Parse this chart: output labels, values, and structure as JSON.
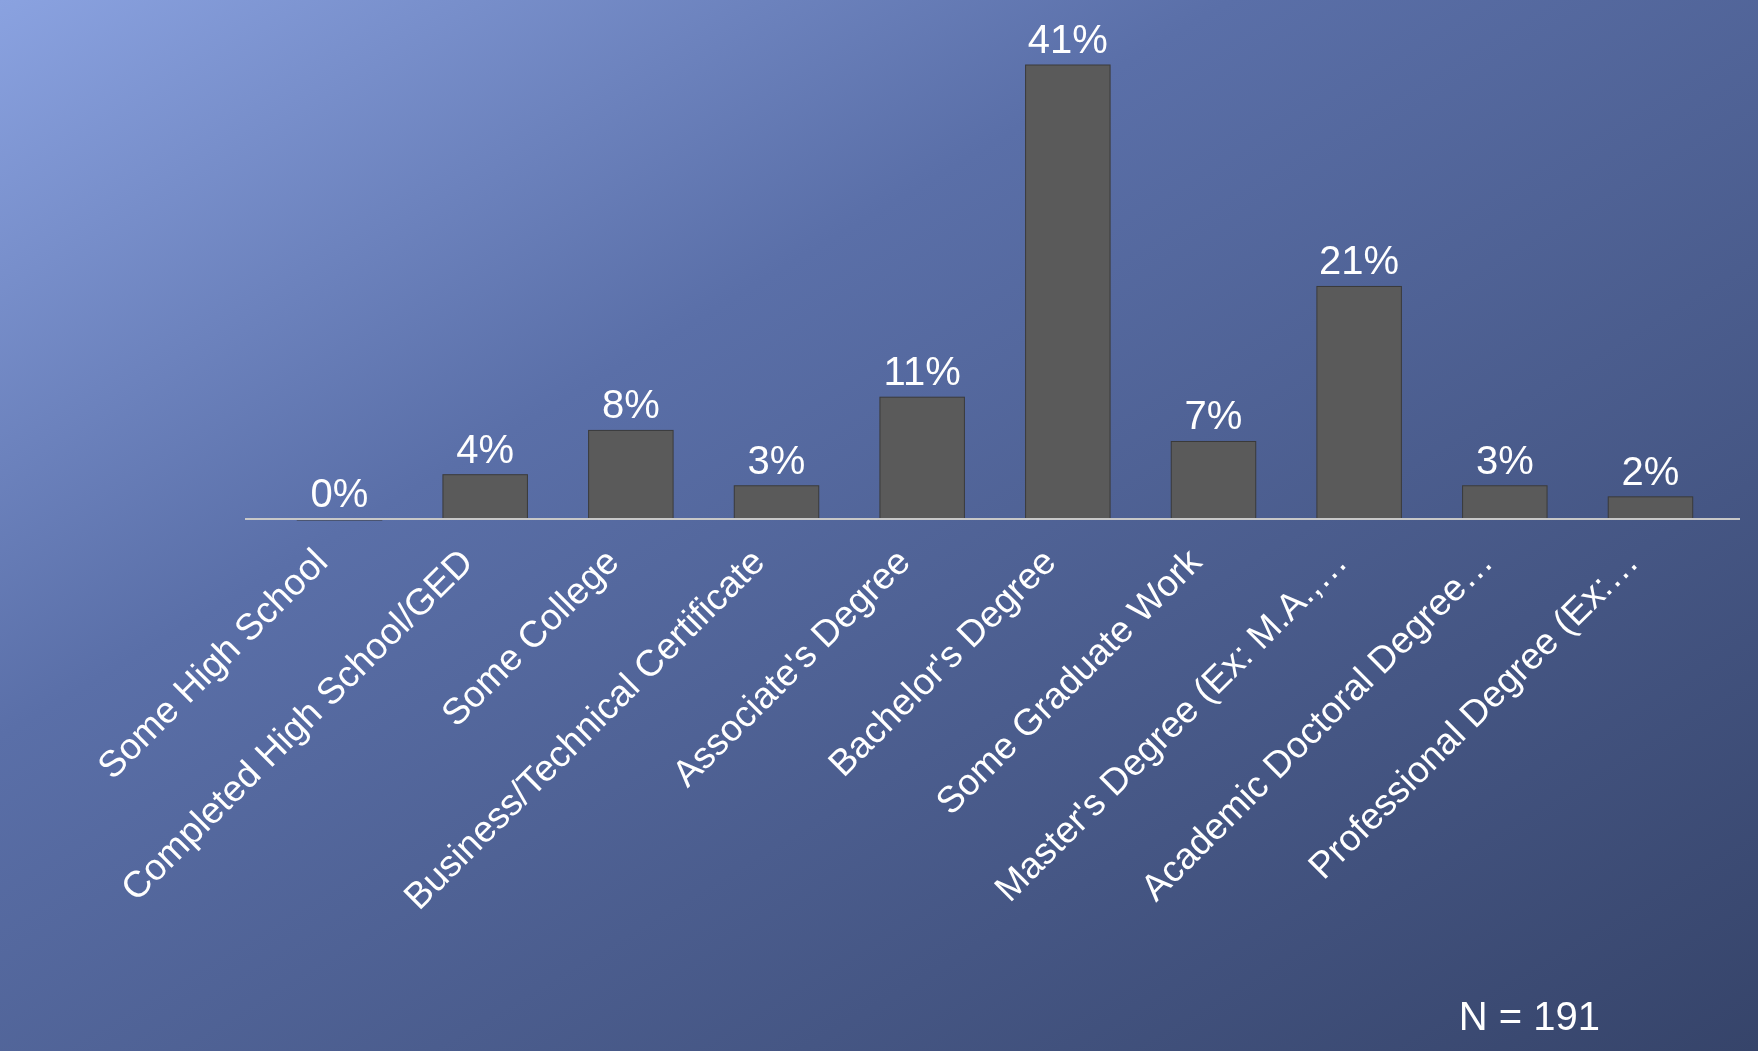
{
  "chart_data": {
    "type": "bar",
    "categories": [
      "Some High School",
      "Completed High School/GED",
      "Some College",
      "Business/Technical Certificate",
      "Associate's Degree",
      "Bachelor's Degree",
      "Some Graduate Work",
      "Master's Degree (Ex: M.A.,…",
      "Academic Doctoral Degree…",
      "Professional Degree (Ex:…"
    ],
    "values": [
      0,
      4,
      8,
      3,
      11,
      41,
      7,
      21,
      3,
      2
    ],
    "value_labels": [
      "0%",
      "4%",
      "8%",
      "3%",
      "11%",
      "41%",
      "7%",
      "21%",
      "3%",
      "2%"
    ],
    "color": "#5a5a5a",
    "annotations": [
      "N = 191"
    ]
  }
}
